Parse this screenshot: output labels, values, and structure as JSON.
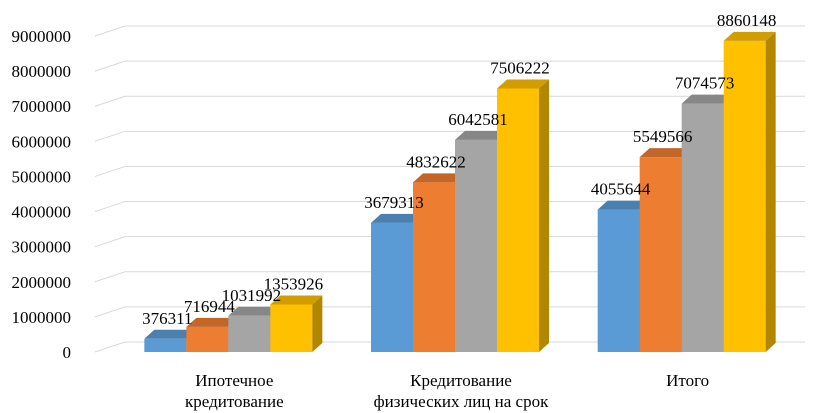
{
  "chart_data": {
    "type": "bar",
    "subtype": "3d-clustered-column",
    "categories": [
      [
        "Ипотечное",
        "кредитование"
      ],
      [
        "Кредитование",
        "физических лиц на срок"
      ],
      [
        "Итого"
      ]
    ],
    "series": [
      {
        "values": [
          376311,
          3679313,
          4055644
        ],
        "color": "#5b9bd5"
      },
      {
        "values": [
          716944,
          4832622,
          5549566
        ],
        "color": "#ed7d31"
      },
      {
        "values": [
          1031992,
          6042581,
          7074573
        ],
        "color": "#a5a5a5"
      },
      {
        "values": [
          1353926,
          7506222,
          8860148
        ],
        "color": "#ffc000"
      }
    ],
    "data_labels": [
      [
        "376311",
        "3679313",
        "4055644"
      ],
      [
        "716944",
        "4832622",
        "5549566"
      ],
      [
        "1031992",
        "6042581",
        "7074573"
      ],
      [
        "1353926",
        "7506222",
        "8860148"
      ]
    ],
    "ylim": [
      0,
      9000000
    ],
    "ytick_values": [
      0,
      1000000,
      2000000,
      3000000,
      4000000,
      5000000,
      6000000,
      7000000,
      8000000,
      9000000
    ],
    "ytick_labels": [
      "0",
      "1000000",
      "2000000",
      "3000000",
      "4000000",
      "5000000",
      "6000000",
      "7000000",
      "8000000",
      "9000000"
    ],
    "grid": true,
    "legend": "none",
    "title": "",
    "xlabel": "",
    "ylabel": ""
  }
}
